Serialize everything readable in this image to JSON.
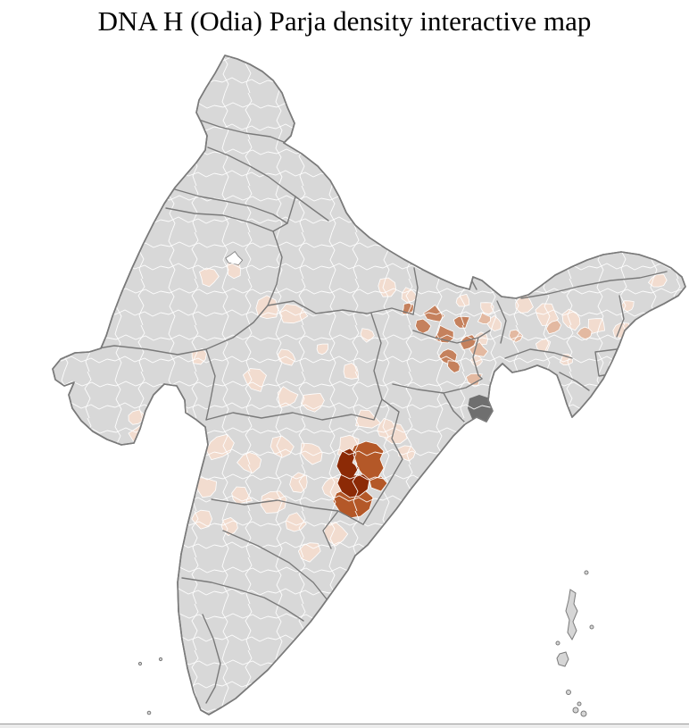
{
  "title": "DNA H (Odia) Parja density interactive map",
  "map": {
    "colors": {
      "background": "#ffffff",
      "base": "#d8d8d8",
      "district_border": "#ffffff",
      "state_border": "#7a7a7a",
      "coast": "#7a7a7a",
      "level_1": "#f2dccf",
      "level_1b": "#e3b9a1",
      "level_2": "#c5815d",
      "level_3": "#b45828",
      "level_4": "#8c2a06",
      "delta": "#6f6f6f",
      "no_data": "#ffffff",
      "islands": "#d6d6d6"
    },
    "density_levels": {
      "low": "level_1",
      "low_mid": "level_1b",
      "mid": "level_2",
      "high": "level_3",
      "hotspot": "level_4"
    }
  },
  "bottom_bar": {
    "border_color": "#9a9a9a",
    "fill_color": "#ececec"
  }
}
